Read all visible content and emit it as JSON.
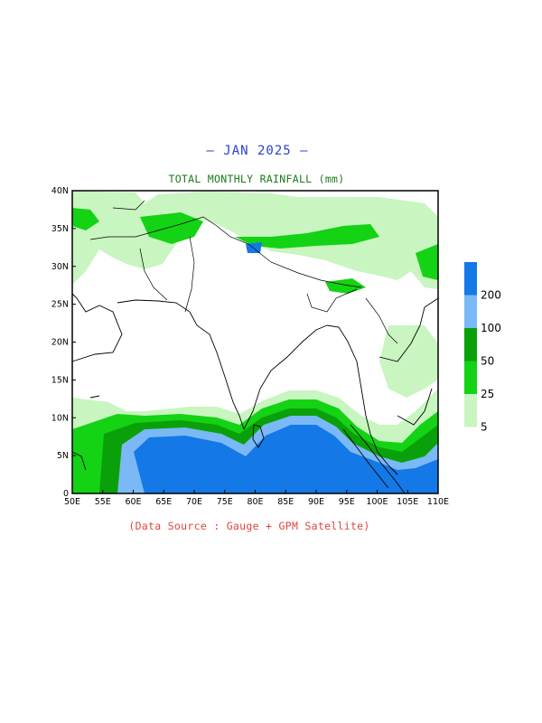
{
  "title": "– JAN 2025 –",
  "subtitle": "TOTAL MONTHLY RAINFALL (mm)",
  "source": "(Data Source : Gauge + GPM Satellite)",
  "axes": {
    "lon_labels": [
      "50E",
      "55E",
      "60E",
      "65E",
      "70E",
      "75E",
      "80E",
      "85E",
      "90E",
      "95E",
      "100E",
      "105E",
      "110E"
    ],
    "lat_labels": [
      "0",
      "5N",
      "10N",
      "15N",
      "20N",
      "25N",
      "30N",
      "35N",
      "40N"
    ]
  },
  "legend": {
    "labels": [
      "5",
      "25",
      "50",
      "100",
      "200"
    ],
    "colors": [
      "#c8f5c0",
      "#14d214",
      "#0aa00a",
      "#7ab9f5",
      "#1478e6"
    ]
  },
  "palette": {
    "light_green": "#c8f5c0",
    "green": "#14d214",
    "dark_green": "#0aa00a",
    "light_blue": "#7ab9f5",
    "blue": "#1478e6"
  }
}
